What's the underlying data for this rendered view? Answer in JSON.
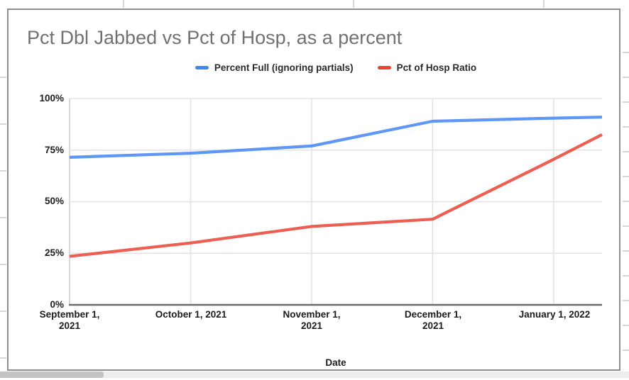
{
  "chart_data": {
    "type": "line",
    "title": "Pct Dbl Jabbed vs Pct of Hosp, as a percent",
    "xlabel": "Date",
    "ylabel": "",
    "x_tick_labels": [
      "September 1, 2021",
      "October 1, 2021",
      "November 1, 2021",
      "December 1, 2021",
      "January 1, 2022"
    ],
    "y_tick_labels": [
      "0%",
      "25%",
      "50%",
      "75%",
      "100%"
    ],
    "ylim": [
      0,
      100
    ],
    "x_domain_months": [
      0,
      4.4
    ],
    "x_tick_months": [
      0,
      1,
      2,
      3,
      4
    ],
    "x_months": [
      0,
      1,
      2,
      3,
      4,
      4.4
    ],
    "grid": true,
    "legend_position": "top-center",
    "background_color": "#ffffff",
    "gridline_color": "#e3e3e3",
    "axis_line_color": "#6b6b6b",
    "series": [
      {
        "name": "Percent Full (ignoring partials)",
        "color": "#4285f4",
        "values": [
          71.5,
          73.5,
          77,
          89,
          90.5,
          91
        ]
      },
      {
        "name": "Pct of Hosp Ratio",
        "color": "#ea4335",
        "values": [
          23.5,
          30,
          38,
          41.5,
          70.5,
          82.5
        ]
      }
    ]
  }
}
